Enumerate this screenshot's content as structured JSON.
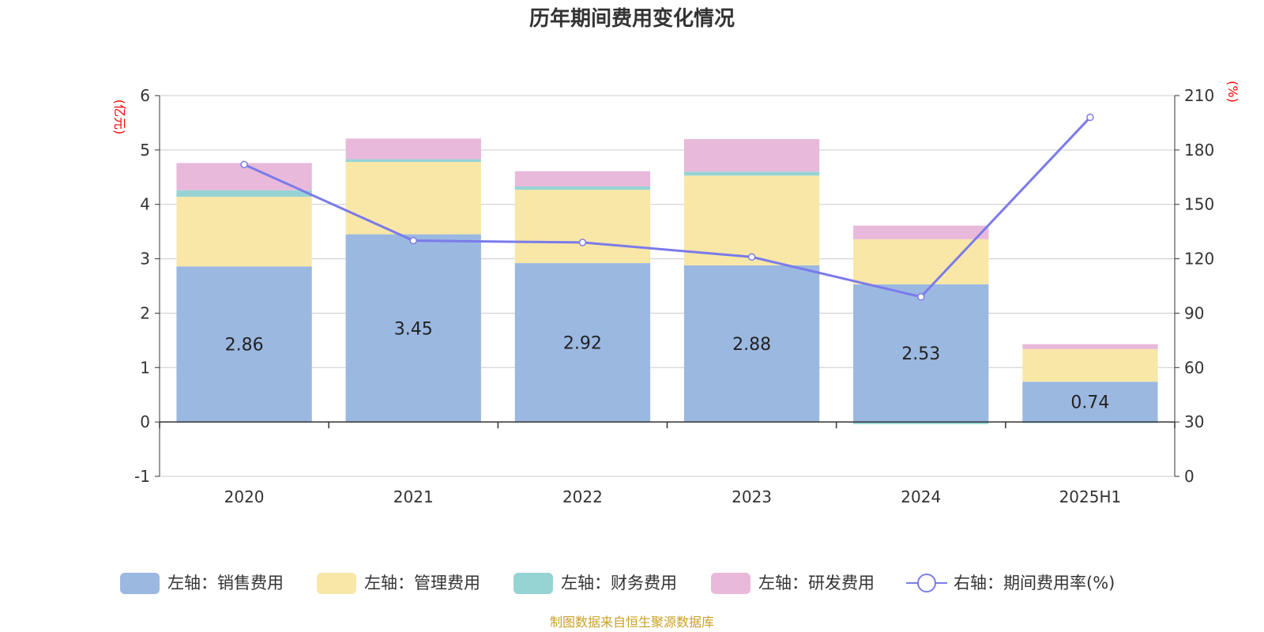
{
  "chart_data": {
    "type": "bar",
    "title": "历年期间费用变化情况",
    "categories": [
      "2020",
      "2021",
      "2022",
      "2023",
      "2024",
      "2025H1"
    ],
    "left_axis": {
      "unit": "(亿元)",
      "ylim": [
        -1,
        6
      ],
      "ticks": [
        -1,
        0,
        1,
        2,
        3,
        4,
        5,
        6
      ]
    },
    "right_axis": {
      "unit": "(%)",
      "ylim": [
        0,
        210
      ],
      "ticks": [
        0,
        30,
        60,
        90,
        120,
        150,
        180,
        210
      ]
    },
    "grid": true,
    "legend_position": "bottom",
    "series": [
      {
        "name": "左轴：销售费用",
        "color": "#9bb8e1",
        "values": [
          2.86,
          3.45,
          2.92,
          2.88,
          2.53,
          0.74
        ],
        "labels": [
          "2.86",
          "3.45",
          "2.92",
          "2.88",
          "2.53",
          "0.74"
        ]
      },
      {
        "name": "左轴：管理费用",
        "color": "#f9e7a8",
        "values": [
          1.28,
          1.33,
          1.35,
          1.65,
          0.83,
          0.6
        ]
      },
      {
        "name": "左轴：财务费用",
        "color": "#96d4d4",
        "values": [
          0.12,
          0.05,
          0.06,
          0.07,
          -0.04,
          -0.02
        ]
      },
      {
        "name": "左轴：研发费用",
        "color": "#e8b9da",
        "values": [
          0.5,
          0.38,
          0.28,
          0.6,
          0.25,
          0.09
        ]
      },
      {
        "name": "右轴：期间费用率(%)",
        "color": "#7b7bea",
        "type": "line",
        "axis": "right",
        "values": [
          172,
          130,
          129,
          121,
          99,
          198
        ]
      }
    ],
    "source": "制图数据来自恒生聚源数据库"
  }
}
